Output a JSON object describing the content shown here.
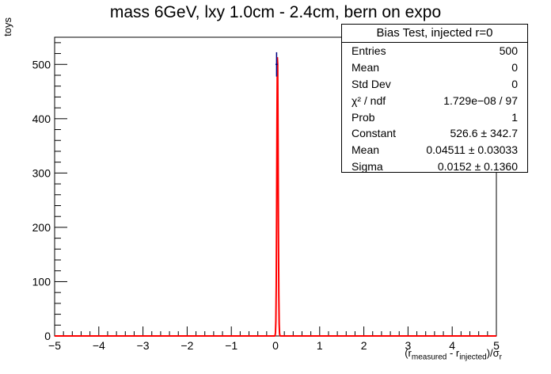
{
  "chart_data": {
    "type": "histogram",
    "title": "mass 6GeV, lxy 1.0cm - 2.4cm, bern on expo",
    "ylabel": "toys",
    "xlabel_parts": {
      "open": "(r",
      "sub1": "measured",
      "mid": " - r",
      "sub2": "injected",
      "close": ")/σ",
      "sub3": "r"
    },
    "xlim": [
      -5,
      5
    ],
    "ylim": [
      0,
      550
    ],
    "x_ticks": [
      "−5",
      "−4",
      "−3",
      "−2",
      "−1",
      "0",
      "1",
      "2",
      "3",
      "4",
      "5"
    ],
    "y_ticks": [
      "0",
      "100",
      "200",
      "300",
      "400",
      "500"
    ],
    "bins": {
      "nbins": 200,
      "bin_width": 0.05,
      "entries": [
        {
          "x_low": 0.0,
          "x_high": 0.05,
          "count": 500
        }
      ]
    },
    "fit": {
      "function": "gaus",
      "constant": 526.6,
      "mean": 0.04511,
      "sigma": 0.0152,
      "color": "#ff0000"
    },
    "hist_color": "#000080",
    "stats_box": {
      "title": "Bias Test, injected r=0",
      "rows": [
        {
          "label": "Entries",
          "value": "500"
        },
        {
          "label": "Mean",
          "value": "0"
        },
        {
          "label": "Std Dev",
          "value": "0"
        },
        {
          "label": "χ² / ndf",
          "value": "1.729e−08 / 97"
        },
        {
          "label": "Prob",
          "value": "1"
        },
        {
          "label": "Constant",
          "value": "526.6  ± 342.7"
        },
        {
          "label": "Mean",
          "value": "0.04511  ± 0.03033"
        },
        {
          "label": "Sigma",
          "value": "0.0152  ± 0.1360"
        }
      ]
    }
  }
}
